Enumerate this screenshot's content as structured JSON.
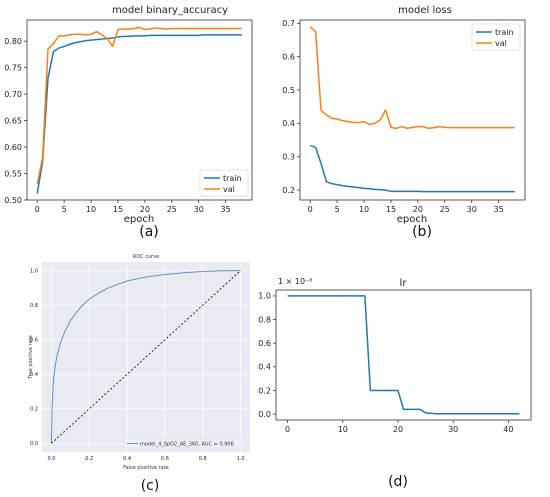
{
  "panels": {
    "a": "(a)",
    "b": "(b)",
    "c": "(c)",
    "d": "(d)"
  },
  "chart_data": [
    {
      "id": "acc",
      "type": "line",
      "title": "model binary_accuracy",
      "xlabel": "epoch",
      "ylabel": "",
      "xlim": [
        -1.9,
        39.9
      ],
      "ylim": [
        0.5,
        0.84
      ],
      "xticks": [
        0,
        5,
        10,
        15,
        20,
        25,
        30,
        35
      ],
      "yticks": [
        0.5,
        0.55,
        0.6,
        0.65,
        0.7,
        0.75,
        0.8
      ],
      "ytick_labels": [
        "0.50",
        "0.55",
        "0.60",
        "0.65",
        "0.70",
        "0.75",
        "0.80"
      ],
      "legend_position": "lower-right",
      "series": [
        {
          "name": "train",
          "color": "#1f77b4",
          "x": [
            0,
            1,
            2,
            3,
            4,
            5,
            6,
            7,
            8,
            9,
            10,
            11,
            12,
            13,
            14,
            15,
            16,
            17,
            18,
            19,
            20,
            21,
            22,
            23,
            24,
            25,
            26,
            27,
            28,
            29,
            30,
            31,
            32,
            33,
            34,
            35,
            36,
            37,
            38
          ],
          "values": [
            0.512,
            0.573,
            0.73,
            0.78,
            0.787,
            0.79,
            0.794,
            0.797,
            0.799,
            0.801,
            0.802,
            0.803,
            0.804,
            0.805,
            0.806,
            0.808,
            0.809,
            0.809,
            0.81,
            0.81,
            0.81,
            0.811,
            0.811,
            0.811,
            0.811,
            0.811,
            0.811,
            0.811,
            0.811,
            0.811,
            0.811,
            0.812,
            0.812,
            0.812,
            0.812,
            0.812,
            0.812,
            0.812,
            0.812
          ]
        },
        {
          "name": "val",
          "color": "#ff7f0e",
          "x": [
            0,
            1,
            2,
            3,
            4,
            5,
            6,
            7,
            8,
            9,
            10,
            11,
            12,
            13,
            14,
            15,
            16,
            17,
            18,
            19,
            20,
            21,
            22,
            23,
            24,
            25,
            26,
            27,
            28,
            29,
            30,
            31,
            32,
            33,
            34,
            35,
            36,
            37,
            38
          ],
          "values": [
            0.53,
            0.58,
            0.785,
            0.795,
            0.81,
            0.81,
            0.812,
            0.813,
            0.813,
            0.812,
            0.813,
            0.818,
            0.812,
            0.805,
            0.79,
            0.822,
            0.823,
            0.823,
            0.824,
            0.826,
            0.822,
            0.823,
            0.825,
            0.824,
            0.823,
            0.824,
            0.824,
            0.824,
            0.824,
            0.824,
            0.824,
            0.824,
            0.824,
            0.824,
            0.824,
            0.824,
            0.824,
            0.824,
            0.824
          ]
        }
      ]
    },
    {
      "id": "loss",
      "type": "line",
      "title": "model loss",
      "xlabel": "epoch",
      "ylabel": "",
      "xlim": [
        -1.9,
        39.9
      ],
      "ylim": [
        0.17,
        0.71
      ],
      "xticks": [
        0,
        5,
        10,
        15,
        20,
        25,
        30,
        35
      ],
      "yticks": [
        0.2,
        0.3,
        0.4,
        0.5,
        0.6,
        0.7
      ],
      "ytick_labels": [
        "0.2",
        "0.3",
        "0.4",
        "0.5",
        "0.6",
        "0.7"
      ],
      "legend_position": "top-right",
      "series": [
        {
          "name": "train",
          "color": "#1f77b4",
          "x": [
            0,
            1,
            2,
            3,
            4,
            5,
            6,
            7,
            8,
            9,
            10,
            11,
            12,
            13,
            14,
            15,
            16,
            17,
            18,
            19,
            20,
            21,
            22,
            23,
            24,
            25,
            26,
            27,
            28,
            29,
            30,
            31,
            32,
            33,
            34,
            35,
            36,
            37,
            38
          ],
          "values": [
            0.333,
            0.328,
            0.28,
            0.225,
            0.219,
            0.216,
            0.213,
            0.211,
            0.209,
            0.207,
            0.205,
            0.204,
            0.202,
            0.201,
            0.2,
            0.196,
            0.196,
            0.196,
            0.196,
            0.196,
            0.196,
            0.195,
            0.195,
            0.195,
            0.195,
            0.195,
            0.195,
            0.195,
            0.195,
            0.195,
            0.195,
            0.195,
            0.195,
            0.195,
            0.195,
            0.195,
            0.195,
            0.195,
            0.195
          ]
        },
        {
          "name": "val",
          "color": "#ff7f0e",
          "x": [
            0,
            1,
            2,
            3,
            4,
            5,
            6,
            7,
            8,
            9,
            10,
            11,
            12,
            13,
            14,
            15,
            16,
            17,
            18,
            19,
            20,
            21,
            22,
            23,
            24,
            25,
            26,
            27,
            28,
            29,
            30,
            31,
            32,
            33,
            34,
            35,
            36,
            37,
            38
          ],
          "values": [
            0.69,
            0.675,
            0.44,
            0.425,
            0.415,
            0.413,
            0.408,
            0.405,
            0.403,
            0.402,
            0.405,
            0.397,
            0.4,
            0.41,
            0.44,
            0.388,
            0.385,
            0.39,
            0.385,
            0.388,
            0.39,
            0.39,
            0.385,
            0.387,
            0.39,
            0.388,
            0.387,
            0.387,
            0.387,
            0.387,
            0.387,
            0.387,
            0.387,
            0.387,
            0.387,
            0.387,
            0.387,
            0.387,
            0.387
          ]
        }
      ]
    },
    {
      "id": "roc",
      "type": "line",
      "title": "ROC curve",
      "xlabel": "False positive rate",
      "ylabel": "True positive rate",
      "xlim": [
        -0.05,
        1.05
      ],
      "ylim": [
        -0.05,
        1.05
      ],
      "xticks": [
        0.0,
        0.2,
        0.4,
        0.6,
        0.8,
        1.0
      ],
      "yticks": [
        0.0,
        0.2,
        0.4,
        0.6,
        0.8,
        1.0
      ],
      "xtick_labels": [
        "0.0",
        "0.2",
        "0.4",
        "0.6",
        "0.8",
        "1.0"
      ],
      "ytick_labels": [
        "0.0",
        "0.2",
        "0.4",
        "0.6",
        "0.8",
        "1.0"
      ],
      "grid": true,
      "legend_position": "lower-right",
      "series": [
        {
          "name": "model_4_SpO2_AE_360, AUC = 0.906",
          "color": "#6a8cbf",
          "x": [
            0.0,
            0.003,
            0.01,
            0.02,
            0.03,
            0.05,
            0.07,
            0.1,
            0.13,
            0.16,
            0.2,
            0.25,
            0.3,
            0.35,
            0.4,
            0.45,
            0.5,
            0.6,
            0.7,
            0.8,
            0.9,
            1.0
          ],
          "values": [
            0.0,
            0.2,
            0.36,
            0.45,
            0.51,
            0.59,
            0.645,
            0.71,
            0.755,
            0.795,
            0.835,
            0.87,
            0.9,
            0.92,
            0.94,
            0.952,
            0.963,
            0.978,
            0.988,
            0.995,
            0.999,
            1.0
          ]
        },
        {
          "name": "",
          "color": "#000000",
          "dashed": true,
          "x": [
            0.0,
            1.0
          ],
          "values": [
            0.0,
            1.0
          ]
        }
      ]
    },
    {
      "id": "lr",
      "type": "line",
      "title": "lr",
      "xlabel": "",
      "ylabel": "",
      "xlim": [
        -2.1,
        44.1
      ],
      "ylim": [
        -0.05,
        1.05
      ],
      "xticks": [
        0,
        10,
        20,
        30,
        40
      ],
      "yticks": [
        0.0,
        0.2,
        0.4,
        0.6,
        0.8,
        1.0
      ],
      "ytick_labels": [
        "0.0",
        "0.2",
        "0.4",
        "0.6",
        "0.8",
        "1.0"
      ],
      "scale_label": "1 × 10⁻⁶",
      "series": [
        {
          "name": "",
          "color": "#1f77b4",
          "x": [
            0,
            14,
            15,
            20,
            21,
            24,
            25,
            27,
            42
          ],
          "values": [
            1.0,
            1.0,
            0.2,
            0.2,
            0.04,
            0.04,
            0.01,
            0.003,
            0.003
          ]
        }
      ]
    }
  ]
}
